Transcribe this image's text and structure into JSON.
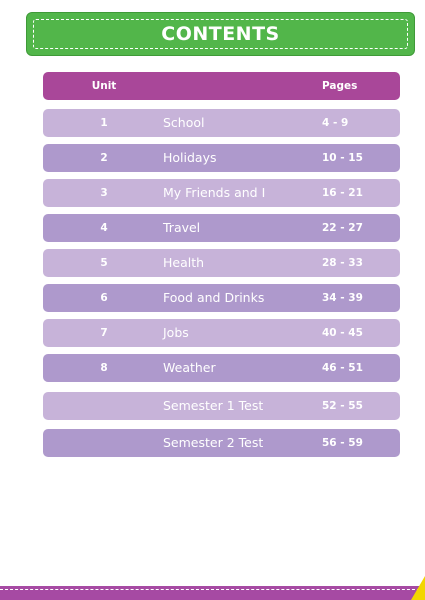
{
  "title": "CONTENTS",
  "header": {
    "unit": "Unit",
    "pages": "Pages"
  },
  "rows": [
    {
      "unit": "1",
      "topic": "School",
      "pages": "4 - 9"
    },
    {
      "unit": "2",
      "topic": "Holidays",
      "pages": "10 - 15"
    },
    {
      "unit": "3",
      "topic": "My Friends and I",
      "pages": "16 - 21"
    },
    {
      "unit": "4",
      "topic": "Travel",
      "pages": "22 - 27"
    },
    {
      "unit": "5",
      "topic": "Health",
      "pages": "28 - 33"
    },
    {
      "unit": "6",
      "topic": "Food and Drinks",
      "pages": "34 - 39"
    },
    {
      "unit": "7",
      "topic": "Jobs",
      "pages": "40 - 45"
    },
    {
      "unit": "8",
      "topic": "Weather",
      "pages": "46 - 51"
    },
    {
      "unit": "",
      "topic": "Semester 1 Test",
      "pages": "52 - 55"
    },
    {
      "unit": "",
      "topic": "Semester 2 Test",
      "pages": "56 - 59"
    }
  ],
  "colors": {
    "banner": "#52b64a",
    "header_row": "#a94799",
    "row_light": "#c7b3d9",
    "row_dark": "#ae99cc",
    "footer": "#a64aa3",
    "corner_tab": "#f2d600"
  }
}
